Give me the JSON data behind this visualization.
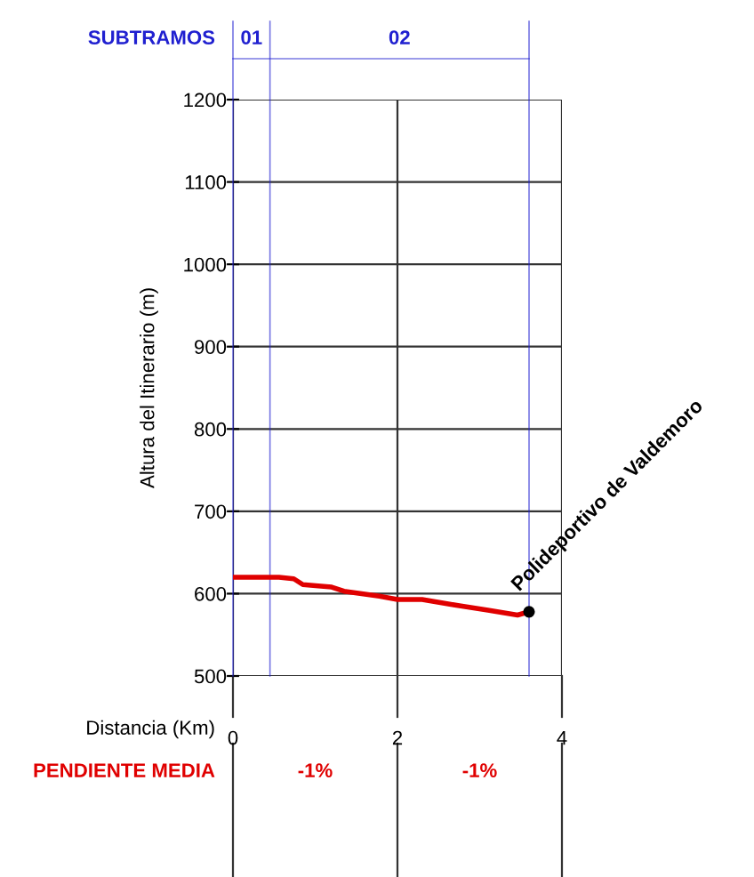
{
  "chart_data": {
    "type": "line",
    "xlabel": "Distancia (Km)",
    "ylabel": "Altura del Itinerario (m)",
    "xlim": [
      0,
      4
    ],
    "xticks": [
      0,
      2,
      4
    ],
    "ylim": [
      500,
      1200
    ],
    "yticks": [
      500,
      600,
      700,
      800,
      900,
      1000,
      1100,
      1200
    ],
    "grid": true,
    "series": [
      {
        "color": "#e00000",
        "x": [
          0,
          0.56,
          0.74,
          0.85,
          1.07,
          1.2,
          1.35,
          1.78,
          2.0,
          2.3,
          2.65,
          2.77,
          3.1,
          3.46,
          3.6
        ],
        "values": [
          620,
          620,
          618,
          611,
          609,
          608,
          603,
          597,
          593,
          593,
          587,
          585,
          580,
          574,
          578
        ]
      },
      {
        "type": "scatter",
        "color": "#000000",
        "x": [
          3.6
        ],
        "values": [
          578
        ]
      }
    ],
    "ref_lines": [
      {
        "axis": "x",
        "value": 0,
        "color": "#2020d0"
      },
      {
        "axis": "x",
        "value": 0.45,
        "color": "#2020d0"
      },
      {
        "axis": "x",
        "value": 3.6,
        "color": "#2020d0"
      }
    ],
    "annotations": [
      "SUBTRAMOS",
      "01",
      "02",
      "PENDIENTE MEDIA",
      "-1%",
      "-1%",
      {
        "text": "Polideportivo de Valdemoro",
        "x": 3.6,
        "y": 578
      }
    ]
  }
}
